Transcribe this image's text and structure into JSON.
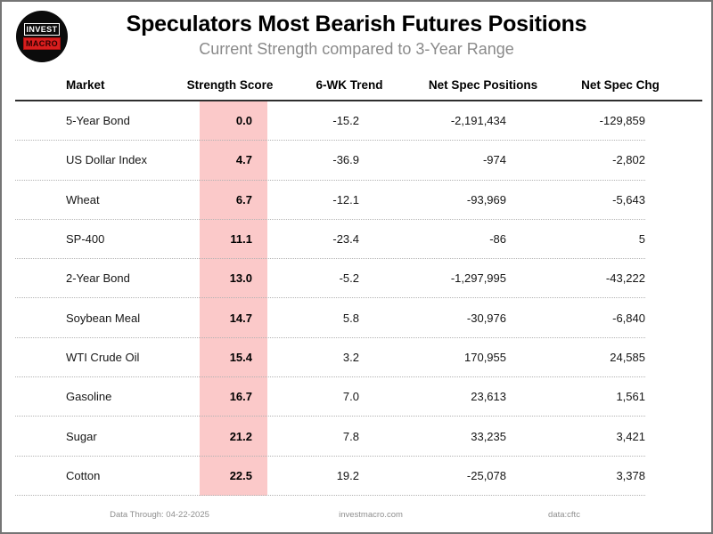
{
  "logo": {
    "line1": "INVEST",
    "line2": "MACRO"
  },
  "chart_data": {
    "type": "table",
    "title": "Speculators Most Bearish Futures Positions",
    "subtitle": "Current Strength compared to 3-Year Range",
    "columns": [
      "Market",
      "Strength Score",
      "6-WK Trend",
      "Net Spec Positions",
      "Net Spec Chg"
    ],
    "highlighted_column": "Strength Score",
    "highlight_color": "#fbc9c9",
    "rows": [
      {
        "market": "5-Year Bond",
        "strength_score": "0.0",
        "trend_6wk": "-15.2",
        "net_spec_positions": "-2,191,434",
        "net_spec_chg": "-129,859"
      },
      {
        "market": "US Dollar Index",
        "strength_score": "4.7",
        "trend_6wk": "-36.9",
        "net_spec_positions": "-974",
        "net_spec_chg": "-2,802"
      },
      {
        "market": "Wheat",
        "strength_score": "6.7",
        "trend_6wk": "-12.1",
        "net_spec_positions": "-93,969",
        "net_spec_chg": "-5,643"
      },
      {
        "market": "SP-400",
        "strength_score": "11.1",
        "trend_6wk": "-23.4",
        "net_spec_positions": "-86",
        "net_spec_chg": "5"
      },
      {
        "market": "2-Year Bond",
        "strength_score": "13.0",
        "trend_6wk": "-5.2",
        "net_spec_positions": "-1,297,995",
        "net_spec_chg": "-43,222"
      },
      {
        "market": "Soybean Meal",
        "strength_score": "14.7",
        "trend_6wk": "5.8",
        "net_spec_positions": "-30,976",
        "net_spec_chg": "-6,840"
      },
      {
        "market": "WTI Crude Oil",
        "strength_score": "15.4",
        "trend_6wk": "3.2",
        "net_spec_positions": "170,955",
        "net_spec_chg": "24,585"
      },
      {
        "market": "Gasoline",
        "strength_score": "16.7",
        "trend_6wk": "7.0",
        "net_spec_positions": "23,613",
        "net_spec_chg": "1,561"
      },
      {
        "market": "Sugar",
        "strength_score": "21.2",
        "trend_6wk": "7.8",
        "net_spec_positions": "33,235",
        "net_spec_chg": "3,421"
      },
      {
        "market": "Cotton",
        "strength_score": "22.5",
        "trend_6wk": "19.2",
        "net_spec_positions": "-25,078",
        "net_spec_chg": "3,378"
      }
    ]
  },
  "footer": {
    "data_through": "Data Through: 04-22-2025",
    "website": "investmacro.com",
    "source": "data:cftc"
  }
}
